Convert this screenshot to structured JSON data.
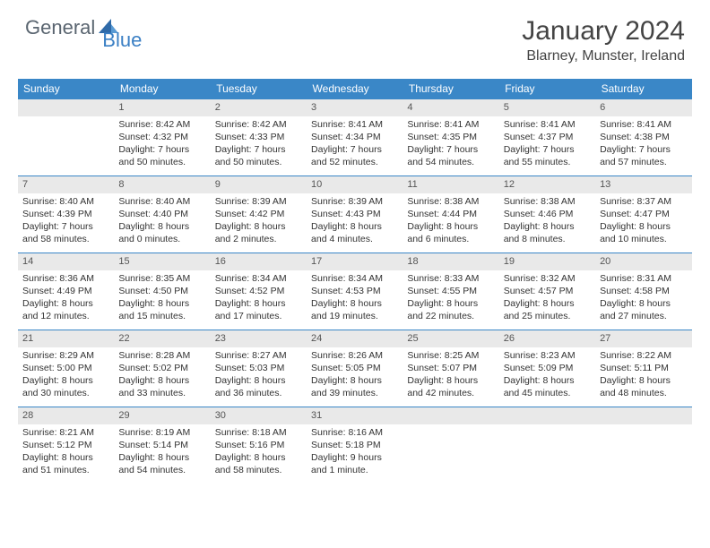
{
  "brand": {
    "first": "General",
    "second": "Blue"
  },
  "title": "January 2024",
  "location": "Blarney, Munster, Ireland",
  "colors": {
    "header_bg": "#3a87c7",
    "header_text": "#ffffff",
    "daynum_bg": "#e9e9e9",
    "border": "#3a87c7",
    "logo_gray": "#5a6570",
    "logo_blue": "#3a7fc4"
  },
  "weekdays": [
    "Sunday",
    "Monday",
    "Tuesday",
    "Wednesday",
    "Thursday",
    "Friday",
    "Saturday"
  ],
  "weeks": [
    [
      {
        "day": ""
      },
      {
        "day": "1",
        "sunrise": "Sunrise: 8:42 AM",
        "sunset": "Sunset: 4:32 PM",
        "dl1": "Daylight: 7 hours",
        "dl2": "and 50 minutes."
      },
      {
        "day": "2",
        "sunrise": "Sunrise: 8:42 AM",
        "sunset": "Sunset: 4:33 PM",
        "dl1": "Daylight: 7 hours",
        "dl2": "and 50 minutes."
      },
      {
        "day": "3",
        "sunrise": "Sunrise: 8:41 AM",
        "sunset": "Sunset: 4:34 PM",
        "dl1": "Daylight: 7 hours",
        "dl2": "and 52 minutes."
      },
      {
        "day": "4",
        "sunrise": "Sunrise: 8:41 AM",
        "sunset": "Sunset: 4:35 PM",
        "dl1": "Daylight: 7 hours",
        "dl2": "and 54 minutes."
      },
      {
        "day": "5",
        "sunrise": "Sunrise: 8:41 AM",
        "sunset": "Sunset: 4:37 PM",
        "dl1": "Daylight: 7 hours",
        "dl2": "and 55 minutes."
      },
      {
        "day": "6",
        "sunrise": "Sunrise: 8:41 AM",
        "sunset": "Sunset: 4:38 PM",
        "dl1": "Daylight: 7 hours",
        "dl2": "and 57 minutes."
      }
    ],
    [
      {
        "day": "7",
        "sunrise": "Sunrise: 8:40 AM",
        "sunset": "Sunset: 4:39 PM",
        "dl1": "Daylight: 7 hours",
        "dl2": "and 58 minutes."
      },
      {
        "day": "8",
        "sunrise": "Sunrise: 8:40 AM",
        "sunset": "Sunset: 4:40 PM",
        "dl1": "Daylight: 8 hours",
        "dl2": "and 0 minutes."
      },
      {
        "day": "9",
        "sunrise": "Sunrise: 8:39 AM",
        "sunset": "Sunset: 4:42 PM",
        "dl1": "Daylight: 8 hours",
        "dl2": "and 2 minutes."
      },
      {
        "day": "10",
        "sunrise": "Sunrise: 8:39 AM",
        "sunset": "Sunset: 4:43 PM",
        "dl1": "Daylight: 8 hours",
        "dl2": "and 4 minutes."
      },
      {
        "day": "11",
        "sunrise": "Sunrise: 8:38 AM",
        "sunset": "Sunset: 4:44 PM",
        "dl1": "Daylight: 8 hours",
        "dl2": "and 6 minutes."
      },
      {
        "day": "12",
        "sunrise": "Sunrise: 8:38 AM",
        "sunset": "Sunset: 4:46 PM",
        "dl1": "Daylight: 8 hours",
        "dl2": "and 8 minutes."
      },
      {
        "day": "13",
        "sunrise": "Sunrise: 8:37 AM",
        "sunset": "Sunset: 4:47 PM",
        "dl1": "Daylight: 8 hours",
        "dl2": "and 10 minutes."
      }
    ],
    [
      {
        "day": "14",
        "sunrise": "Sunrise: 8:36 AM",
        "sunset": "Sunset: 4:49 PM",
        "dl1": "Daylight: 8 hours",
        "dl2": "and 12 minutes."
      },
      {
        "day": "15",
        "sunrise": "Sunrise: 8:35 AM",
        "sunset": "Sunset: 4:50 PM",
        "dl1": "Daylight: 8 hours",
        "dl2": "and 15 minutes."
      },
      {
        "day": "16",
        "sunrise": "Sunrise: 8:34 AM",
        "sunset": "Sunset: 4:52 PM",
        "dl1": "Daylight: 8 hours",
        "dl2": "and 17 minutes."
      },
      {
        "day": "17",
        "sunrise": "Sunrise: 8:34 AM",
        "sunset": "Sunset: 4:53 PM",
        "dl1": "Daylight: 8 hours",
        "dl2": "and 19 minutes."
      },
      {
        "day": "18",
        "sunrise": "Sunrise: 8:33 AM",
        "sunset": "Sunset: 4:55 PM",
        "dl1": "Daylight: 8 hours",
        "dl2": "and 22 minutes."
      },
      {
        "day": "19",
        "sunrise": "Sunrise: 8:32 AM",
        "sunset": "Sunset: 4:57 PM",
        "dl1": "Daylight: 8 hours",
        "dl2": "and 25 minutes."
      },
      {
        "day": "20",
        "sunrise": "Sunrise: 8:31 AM",
        "sunset": "Sunset: 4:58 PM",
        "dl1": "Daylight: 8 hours",
        "dl2": "and 27 minutes."
      }
    ],
    [
      {
        "day": "21",
        "sunrise": "Sunrise: 8:29 AM",
        "sunset": "Sunset: 5:00 PM",
        "dl1": "Daylight: 8 hours",
        "dl2": "and 30 minutes."
      },
      {
        "day": "22",
        "sunrise": "Sunrise: 8:28 AM",
        "sunset": "Sunset: 5:02 PM",
        "dl1": "Daylight: 8 hours",
        "dl2": "and 33 minutes."
      },
      {
        "day": "23",
        "sunrise": "Sunrise: 8:27 AM",
        "sunset": "Sunset: 5:03 PM",
        "dl1": "Daylight: 8 hours",
        "dl2": "and 36 minutes."
      },
      {
        "day": "24",
        "sunrise": "Sunrise: 8:26 AM",
        "sunset": "Sunset: 5:05 PM",
        "dl1": "Daylight: 8 hours",
        "dl2": "and 39 minutes."
      },
      {
        "day": "25",
        "sunrise": "Sunrise: 8:25 AM",
        "sunset": "Sunset: 5:07 PM",
        "dl1": "Daylight: 8 hours",
        "dl2": "and 42 minutes."
      },
      {
        "day": "26",
        "sunrise": "Sunrise: 8:23 AM",
        "sunset": "Sunset: 5:09 PM",
        "dl1": "Daylight: 8 hours",
        "dl2": "and 45 minutes."
      },
      {
        "day": "27",
        "sunrise": "Sunrise: 8:22 AM",
        "sunset": "Sunset: 5:11 PM",
        "dl1": "Daylight: 8 hours",
        "dl2": "and 48 minutes."
      }
    ],
    [
      {
        "day": "28",
        "sunrise": "Sunrise: 8:21 AM",
        "sunset": "Sunset: 5:12 PM",
        "dl1": "Daylight: 8 hours",
        "dl2": "and 51 minutes."
      },
      {
        "day": "29",
        "sunrise": "Sunrise: 8:19 AM",
        "sunset": "Sunset: 5:14 PM",
        "dl1": "Daylight: 8 hours",
        "dl2": "and 54 minutes."
      },
      {
        "day": "30",
        "sunrise": "Sunrise: 8:18 AM",
        "sunset": "Sunset: 5:16 PM",
        "dl1": "Daylight: 8 hours",
        "dl2": "and 58 minutes."
      },
      {
        "day": "31",
        "sunrise": "Sunrise: 8:16 AM",
        "sunset": "Sunset: 5:18 PM",
        "dl1": "Daylight: 9 hours",
        "dl2": "and 1 minute."
      },
      {
        "day": ""
      },
      {
        "day": ""
      },
      {
        "day": ""
      }
    ]
  ]
}
